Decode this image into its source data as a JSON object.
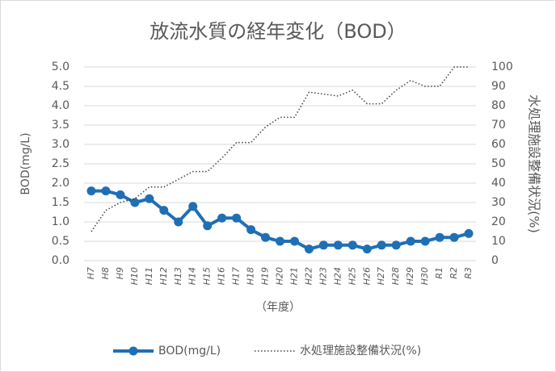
{
  "chart_data": {
    "type": "line",
    "title": "放流水質の経年変化（BOD）",
    "x_label": "（年度）",
    "y_label": "BOD(mg/L)",
    "y2_label": "水処理施設整備状況(%)",
    "categories": [
      "H7",
      "H8",
      "H9",
      "H10",
      "H11",
      "H12",
      "H13",
      "H14",
      "H15",
      "H16",
      "H17",
      "H18",
      "H19",
      "H20",
      "H21",
      "H22",
      "H23",
      "H24",
      "H25",
      "H26",
      "H27",
      "H28",
      "H29",
      "H30",
      "R1",
      "R2",
      "R3"
    ],
    "series": [
      {
        "name": "BOD(mg/L)",
        "color": "#1f6fb5",
        "style": "solid-marker",
        "values": [
          1.8,
          1.8,
          1.7,
          1.5,
          1.6,
          1.3,
          1.0,
          1.4,
          0.9,
          1.1,
          1.1,
          0.8,
          0.6,
          0.5,
          0.5,
          0.3,
          0.4,
          0.4,
          0.4,
          0.3,
          0.4,
          0.4,
          0.5,
          0.5,
          0.6,
          0.6,
          0.7
        ]
      },
      {
        "name": "水処理施設整備状況(%)",
        "color": "#404040",
        "style": "dotted",
        "axis": "y2",
        "values": [
          15,
          26,
          30,
          32,
          38,
          38,
          42,
          46,
          46,
          53,
          61,
          61,
          69,
          74,
          74,
          87,
          86,
          85,
          88,
          81,
          81,
          88,
          93,
          90,
          90,
          100,
          100
        ]
      }
    ],
    "ylim": [
      0,
      5
    ],
    "yticks": [
      {
        "value": 0,
        "label": "0.0"
      },
      {
        "value": 0.5,
        "label": "0.5"
      },
      {
        "value": 1,
        "label": "1.0"
      },
      {
        "value": 1.5,
        "label": "1.5"
      },
      {
        "value": 2,
        "label": "2.0"
      },
      {
        "value": 2.5,
        "label": "2.5"
      },
      {
        "value": 3,
        "label": "3.0"
      },
      {
        "value": 3.5,
        "label": "3.5"
      },
      {
        "value": 4,
        "label": "4.0"
      },
      {
        "value": 4.5,
        "label": "4.5"
      },
      {
        "value": 5,
        "label": "5.0"
      }
    ],
    "y2lim": [
      0,
      100
    ],
    "y2ticks": [
      0,
      10,
      20,
      30,
      40,
      50,
      60,
      70,
      80,
      90,
      100
    ],
    "grid": true,
    "legend": "bottom"
  }
}
